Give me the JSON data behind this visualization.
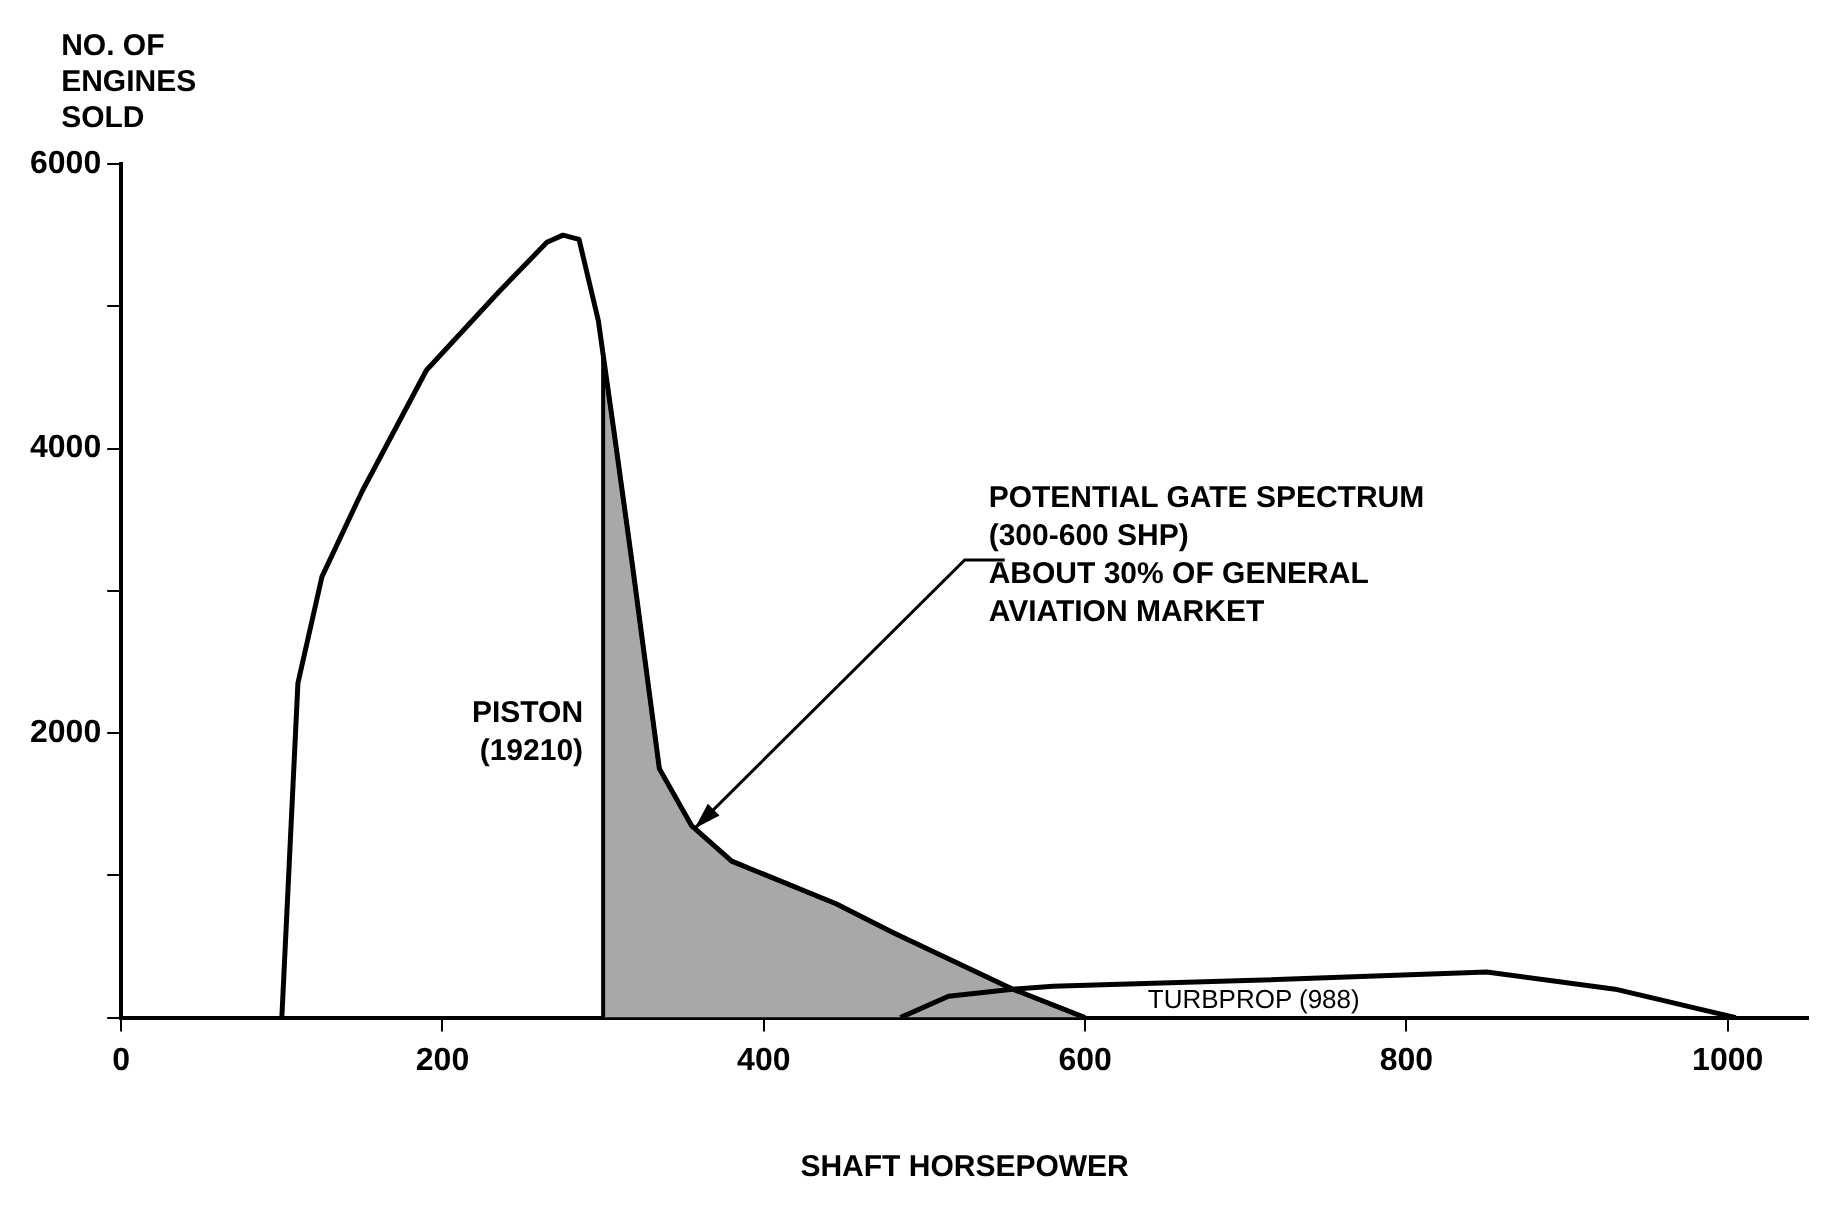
{
  "chart_data": {
    "type": "line",
    "xlabel": "SHAFT HORSEPOWER",
    "ylabel": "NO. OF ENGINES SOLD",
    "series": [
      {
        "type": "area",
        "color": "#a8a8a8",
        "x": [
          300,
          300,
          307,
          318,
          335,
          355,
          380,
          445,
          480,
          555,
          600
        ],
        "values": [
          0,
          4650,
          4100,
          3200,
          1750,
          1350,
          1100,
          800,
          600,
          200,
          0
        ]
      },
      {
        "name": "PISTON (19210)",
        "color": "#000000",
        "x": [
          100,
          110,
          125,
          150,
          190,
          235,
          265,
          275,
          285,
          297,
          307,
          318,
          335,
          355,
          380,
          445,
          480,
          555,
          600
        ],
        "values": [
          0,
          2350,
          3100,
          3700,
          4550,
          5100,
          5450,
          5500,
          5470,
          4900,
          4100,
          3200,
          1750,
          1350,
          1100,
          800,
          600,
          200,
          0
        ]
      },
      {
        "name": "TURBPROP (988)",
        "color": "#000000",
        "x": [
          485,
          515,
          555,
          580,
          700,
          850,
          930,
          1005
        ],
        "values": [
          0,
          150,
          200,
          220,
          260,
          320,
          200,
          0
        ]
      }
    ],
    "annotations": [
      {
        "text": "POTENTIAL GATE SPECTRUM\n(300-600 SHP)\nABOUT 30% OF GENERAL\nAVIATION MARKET",
        "x": 357,
        "y": 1330
      }
    ],
    "xlim": [
      0,
      1050
    ],
    "xticks": [
      0,
      200,
      400,
      600,
      800,
      1000
    ],
    "ylim": [
      0,
      6000
    ],
    "yticks": [
      {
        "value": 0,
        "label": null
      },
      {
        "value": 1000,
        "label": null
      },
      2000,
      {
        "value": 3000,
        "label": null
      },
      4000,
      {
        "value": 5000,
        "label": null
      },
      6000
    ],
    "grid": false,
    "legend": false,
    "marker": "none",
    "line_style": "solid"
  }
}
